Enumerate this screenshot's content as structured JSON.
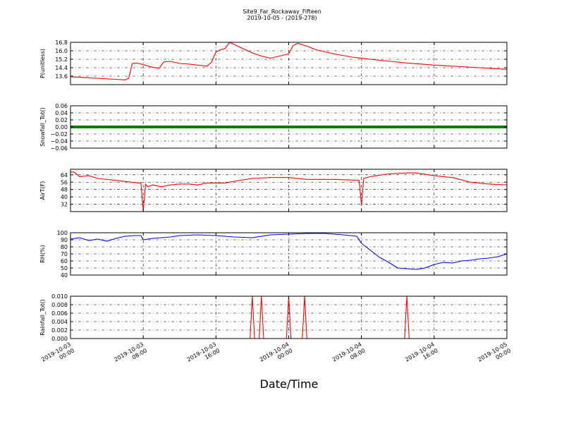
{
  "figure": {
    "title": "Site9_Far_Rockaway_Fifteen",
    "subtitle": "2019-10-05 - (2019-278)",
    "xlabel": "Date/Time",
    "x_ticks": [
      {
        "x": "2019-10-03 00:00",
        "label": "2019-10-03\n00:00"
      },
      {
        "x": "2019-10-03 08:00",
        "label": "2019-10-03\n08:00"
      },
      {
        "x": "2019-10-03 16:00",
        "label": "2019-10-03\n16:00"
      },
      {
        "x": "2019-10-04 00:00",
        "label": "2019-10-04\n00:00"
      },
      {
        "x": "2019-10-04 08:00",
        "label": "2019-10-04\n08:00"
      },
      {
        "x": "2019-10-04 16:00",
        "label": "2019-10-04\n16:00"
      },
      {
        "x": "2019-10-05 00:00",
        "label": "2019-10-05\n00:00"
      }
    ],
    "xlim": [
      "2019-10-03 00:00",
      "2019-10-05 00:00"
    ]
  },
  "chart_data": [
    {
      "type": "line",
      "ylabel": "P(unitless)",
      "ylim": [
        12.8,
        16.8
      ],
      "yticks": [
        13.6,
        14.4,
        15.2,
        16.0,
        16.8
      ],
      "ytick_labels": [
        "13.6",
        "14.4",
        "15.2",
        "16.0",
        "16.8"
      ],
      "grid": true,
      "color": "#ff0000",
      "x": [
        "2019-10-03 00:00",
        "2019-10-03 02:00",
        "2019-10-03 04:00",
        "2019-10-03 05:00",
        "2019-10-03 06:00",
        "2019-10-03 06:24",
        "2019-10-03 06:48",
        "2019-10-03 07:15",
        "2019-10-03 08:00",
        "2019-10-03 09:00",
        "2019-10-03 09:45",
        "2019-10-03 10:15",
        "2019-10-03 11:00",
        "2019-10-03 12:00",
        "2019-10-03 13:00",
        "2019-10-03 14:00",
        "2019-10-03 15:00",
        "2019-10-03 15:30",
        "2019-10-03 16:00",
        "2019-10-03 16:30",
        "2019-10-03 17:00",
        "2019-10-03 17:30",
        "2019-10-03 18:00",
        "2019-10-03 19:00",
        "2019-10-03 20:00",
        "2019-10-03 21:00",
        "2019-10-03 22:00",
        "2019-10-03 23:00",
        "2019-10-04 00:00",
        "2019-10-04 00:30",
        "2019-10-04 01:00",
        "2019-10-04 02:00",
        "2019-10-04 03:00",
        "2019-10-04 05:00",
        "2019-10-04 07:00",
        "2019-10-04 10:00",
        "2019-10-04 13:00",
        "2019-10-04 16:00",
        "2019-10-04 19:00",
        "2019-10-04 22:00",
        "2019-10-05 00:00"
      ],
      "values": [
        13.55,
        13.45,
        13.35,
        13.3,
        13.25,
        13.4,
        14.8,
        14.85,
        14.7,
        14.45,
        14.35,
        14.95,
        15.0,
        14.8,
        14.75,
        14.65,
        14.55,
        14.9,
        15.9,
        16.1,
        16.2,
        16.8,
        16.6,
        16.2,
        15.8,
        15.5,
        15.3,
        15.5,
        15.7,
        16.5,
        16.7,
        16.45,
        16.1,
        15.7,
        15.4,
        15.1,
        14.85,
        14.65,
        14.5,
        14.35,
        14.25
      ]
    },
    {
      "type": "line",
      "ylabel": "Snowfall_Tot()",
      "ylim": [
        -0.06,
        0.06
      ],
      "yticks": [
        -0.06,
        -0.04,
        -0.02,
        0.0,
        0.02,
        0.04,
        0.06
      ],
      "ytick_labels": [
        "−0.06",
        "−0.04",
        "−0.02",
        "0.00",
        "0.02",
        "0.04",
        "0.06"
      ],
      "grid": true,
      "color": "#008000",
      "x": [
        "2019-10-03 00:00",
        "2019-10-05 00:00"
      ],
      "values": [
        0.0,
        0.0
      ]
    },
    {
      "type": "line",
      "ylabel": "AirT(F)",
      "ylim": [
        24,
        70
      ],
      "yticks": [
        32,
        40,
        48,
        56,
        64
      ],
      "ytick_labels": [
        "32",
        "40",
        "48",
        "56",
        "64"
      ],
      "grid": true,
      "color": "#ff0000",
      "x": [
        "2019-10-03 00:00",
        "2019-10-03 00:24",
        "2019-10-03 01:00",
        "2019-10-03 02:00",
        "2019-10-03 03:00",
        "2019-10-03 05:00",
        "2019-10-03 07:30",
        "2019-10-03 07:45",
        "2019-10-03 08:00",
        "2019-10-03 08:15",
        "2019-10-03 08:30",
        "2019-10-03 09:00",
        "2019-10-03 10:00",
        "2019-10-03 11:00",
        "2019-10-03 12:00",
        "2019-10-03 13:00",
        "2019-10-03 14:00",
        "2019-10-03 15:00",
        "2019-10-03 16:00",
        "2019-10-03 17:00",
        "2019-10-03 18:00",
        "2019-10-03 20:00",
        "2019-10-03 22:00",
        "2019-10-04 00:00",
        "2019-10-04 02:00",
        "2019-10-04 05:00",
        "2019-10-04 07:45",
        "2019-10-04 08:00",
        "2019-10-04 08:15",
        "2019-10-04 09:00",
        "2019-10-04 11:00",
        "2019-10-04 13:00",
        "2019-10-04 14:00",
        "2019-10-04 16:00",
        "2019-10-04 18:00",
        "2019-10-04 20:00",
        "2019-10-04 22:00",
        "2019-10-05 00:00"
      ],
      "values": [
        67,
        67,
        62,
        63,
        60,
        58,
        55,
        55,
        25,
        54,
        51,
        53,
        51,
        53,
        54,
        54,
        53,
        55,
        55,
        55,
        57,
        60,
        61,
        61,
        59,
        59,
        58,
        31,
        60,
        62,
        65,
        66,
        66,
        63,
        61,
        56,
        54,
        53
      ]
    },
    {
      "type": "line",
      "ylabel": "RH(%)",
      "ylim": [
        40,
        100
      ],
      "yticks": [
        40,
        50,
        60,
        70,
        80,
        90,
        100
      ],
      "ytick_labels": [
        "40",
        "50",
        "60",
        "70",
        "80",
        "90",
        "100"
      ],
      "grid": true,
      "color": "#0000ff",
      "x": [
        "2019-10-03 00:00",
        "2019-10-03 01:00",
        "2019-10-03 02:00",
        "2019-10-03 03:00",
        "2019-10-03 04:00",
        "2019-10-03 05:00",
        "2019-10-03 06:00",
        "2019-10-03 07:00",
        "2019-10-03 07:45",
        "2019-10-03 08:00",
        "2019-10-03 09:00",
        "2019-10-03 10:00",
        "2019-10-03 11:00",
        "2019-10-03 12:00",
        "2019-10-03 14:00",
        "2019-10-03 16:00",
        "2019-10-03 18:00",
        "2019-10-03 20:00",
        "2019-10-03 22:00",
        "2019-10-04 00:00",
        "2019-10-04 02:00",
        "2019-10-04 04:00",
        "2019-10-04 06:00",
        "2019-10-04 07:30",
        "2019-10-04 08:00",
        "2019-10-04 09:00",
        "2019-10-04 10:00",
        "2019-10-04 11:00",
        "2019-10-04 12:00",
        "2019-10-04 13:00",
        "2019-10-04 14:00",
        "2019-10-04 15:00",
        "2019-10-04 16:00",
        "2019-10-04 17:00",
        "2019-10-04 18:00",
        "2019-10-04 19:00",
        "2019-10-04 20:00",
        "2019-10-04 21:00",
        "2019-10-04 22:00",
        "2019-10-04 23:00",
        "2019-10-05 00:00"
      ],
      "values": [
        91,
        93,
        89,
        91,
        88,
        92,
        95,
        96,
        96,
        90,
        92,
        93,
        94,
        96,
        97,
        96,
        94,
        93,
        97,
        98,
        99,
        99,
        97,
        95,
        85,
        75,
        65,
        58,
        50,
        49,
        48,
        50,
        55,
        58,
        57,
        60,
        61,
        63,
        64,
        66,
        70
      ]
    },
    {
      "type": "line",
      "ylabel": "Rainfall_Tot()",
      "ylim": [
        0.0,
        0.01
      ],
      "yticks": [
        0.0,
        0.002,
        0.004,
        0.006,
        0.008,
        0.01
      ],
      "ytick_labels": [
        "0.000",
        "0.002",
        "0.004",
        "0.006",
        "0.008",
        "0.010"
      ],
      "grid": true,
      "color": "#ff0000",
      "x": [
        "2019-10-03 00:00",
        "2019-10-03 19:45",
        "2019-10-03 20:00",
        "2019-10-03 20:15",
        "2019-10-03 20:45",
        "2019-10-03 21:00",
        "2019-10-03 21:15",
        "2019-10-03 23:45",
        "2019-10-04 00:00",
        "2019-10-04 00:15",
        "2019-10-04 01:30",
        "2019-10-04 01:45",
        "2019-10-04 02:00",
        "2019-10-04 12:45",
        "2019-10-04 13:00",
        "2019-10-04 13:15",
        "2019-10-05 00:00"
      ],
      "values": [
        0,
        0,
        0.01,
        0,
        0,
        0.01,
        0,
        0,
        0.01,
        0,
        0,
        0.01,
        0,
        0,
        0.01,
        0,
        0
      ]
    }
  ]
}
